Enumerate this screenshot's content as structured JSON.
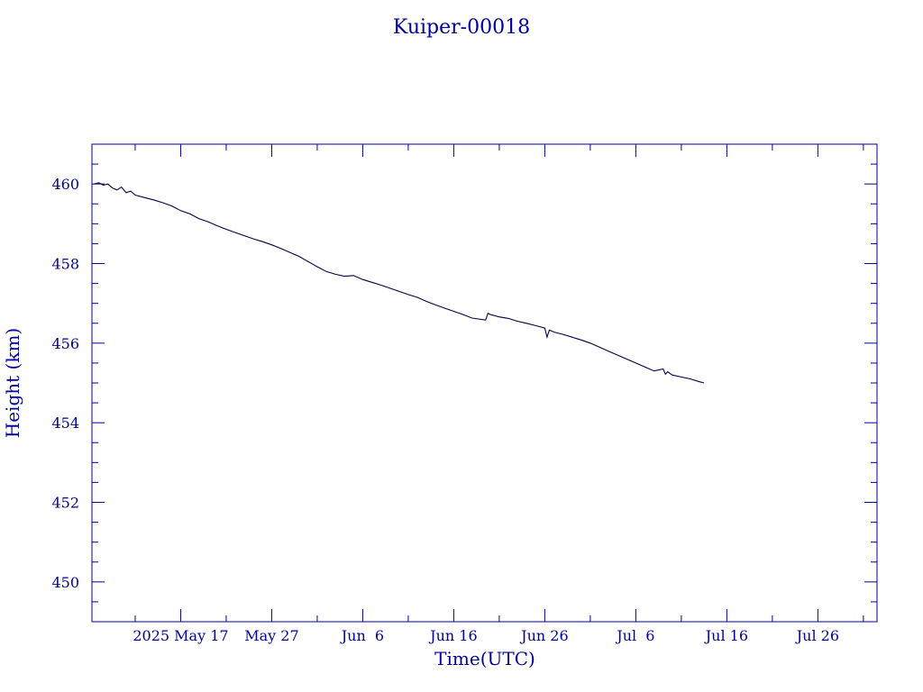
{
  "chart_data": {
    "type": "line",
    "title": "Kuiper-00018",
    "xlabel": "Time(UTC)",
    "ylabel": "Height (km)",
    "xlim": [
      "2025-05-07T06:00",
      "2025-08-01T12:00"
    ],
    "ylim": [
      449,
      461
    ],
    "x_ticks": [
      {
        "date": "2025-05-17",
        "label": "2025 May 17"
      },
      {
        "date": "2025-05-27",
        "label": "May 27"
      },
      {
        "date": "2025-06-06",
        "label": "Jun  6"
      },
      {
        "date": "2025-06-16",
        "label": "Jun 16"
      },
      {
        "date": "2025-06-26",
        "label": "Jun 26"
      },
      {
        "date": "2025-07-06",
        "label": "Jul  6"
      },
      {
        "date": "2025-07-16",
        "label": "Jul 16"
      },
      {
        "date": "2025-07-26",
        "label": "Jul 26"
      }
    ],
    "y_ticks": [
      450,
      452,
      454,
      456,
      458,
      460
    ],
    "grid": false,
    "colors": {
      "axis": "#0000a0",
      "series": "#00004a"
    },
    "series": [
      {
        "x": [
          "2025-05-07T12:00",
          "2025-05-08",
          "2025-05-08T12:00",
          "2025-05-09",
          "2025-05-09T12:00",
          "2025-05-10",
          "2025-05-10T12:00",
          "2025-05-11",
          "2025-05-11T12:00",
          "2025-05-12",
          "2025-05-13",
          "2025-05-14",
          "2025-05-15",
          "2025-05-16",
          "2025-05-17",
          "2025-05-18",
          "2025-05-19",
          "2025-05-20",
          "2025-05-21",
          "2025-05-22",
          "2025-05-23",
          "2025-05-24",
          "2025-05-25",
          "2025-05-26",
          "2025-05-27",
          "2025-05-28",
          "2025-05-29",
          "2025-05-30",
          "2025-05-31",
          "2025-06-01",
          "2025-06-02",
          "2025-06-03",
          "2025-06-04",
          "2025-06-05",
          "2025-06-06",
          "2025-06-07",
          "2025-06-08",
          "2025-06-09",
          "2025-06-10",
          "2025-06-11",
          "2025-06-12",
          "2025-06-13",
          "2025-06-14",
          "2025-06-15",
          "2025-06-16",
          "2025-06-17",
          "2025-06-18",
          "2025-06-19T12:00",
          "2025-06-19T18:00",
          "2025-06-20",
          "2025-06-21",
          "2025-06-22",
          "2025-06-23",
          "2025-06-24",
          "2025-06-25",
          "2025-06-26",
          "2025-06-26T06:00",
          "2025-06-26T12:00",
          "2025-06-27",
          "2025-06-28",
          "2025-06-29",
          "2025-06-30",
          "2025-07-01",
          "2025-07-02",
          "2025-07-03",
          "2025-07-04",
          "2025-07-05",
          "2025-07-06",
          "2025-07-07",
          "2025-07-08",
          "2025-07-09",
          "2025-07-09T06:00",
          "2025-07-09T12:00",
          "2025-07-10",
          "2025-07-11",
          "2025-07-12",
          "2025-07-13",
          "2025-07-13T12:00"
        ],
        "y": [
          460.0,
          460.03,
          459.97,
          460.0,
          459.9,
          459.85,
          459.92,
          459.78,
          459.82,
          459.72,
          459.66,
          459.6,
          459.53,
          459.45,
          459.33,
          459.25,
          459.13,
          459.05,
          458.95,
          458.86,
          458.78,
          458.7,
          458.62,
          458.55,
          458.47,
          458.38,
          458.28,
          458.18,
          458.05,
          457.92,
          457.8,
          457.73,
          457.68,
          457.7,
          457.6,
          457.53,
          457.46,
          457.38,
          457.3,
          457.22,
          457.15,
          457.05,
          456.96,
          456.88,
          456.8,
          456.72,
          456.63,
          456.58,
          456.75,
          456.72,
          456.66,
          456.62,
          456.55,
          456.5,
          456.44,
          456.38,
          456.15,
          456.33,
          456.28,
          456.22,
          456.15,
          456.08,
          456.0,
          455.9,
          455.8,
          455.7,
          455.6,
          455.5,
          455.4,
          455.3,
          455.35,
          455.22,
          455.28,
          455.2,
          455.15,
          455.1,
          455.03,
          455.0
        ]
      }
    ]
  }
}
